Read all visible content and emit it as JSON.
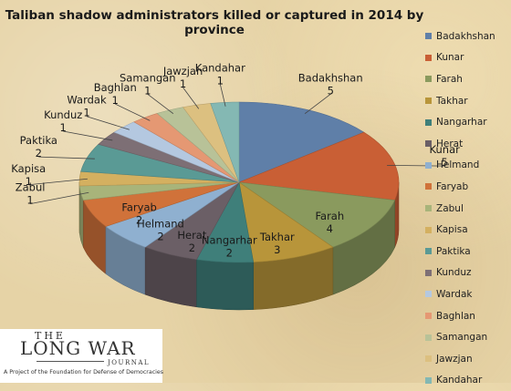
{
  "chart_data": {
    "type": "pie",
    "title": "Taliban shadow administrators killed or captured in 2014 by province",
    "categories": [
      "Badakhshan",
      "Kunar",
      "Farah",
      "Takhar",
      "Nangarhar",
      "Herat",
      "Helmand",
      "Faryab",
      "Zabul",
      "Kapisa",
      "Paktika",
      "Kunduz",
      "Wardak",
      "Baghlan",
      "Samangan",
      "Jawzjan",
      "Kandahar"
    ],
    "values": [
      5,
      5,
      4,
      3,
      2,
      2,
      2,
      2,
      1,
      1,
      2,
      1,
      1,
      1,
      1,
      1,
      1
    ],
    "colors": [
      "#5f7fa8",
      "#c95f35",
      "#8a9a5e",
      "#b8953a",
      "#3f7f7a",
      "#6b5f66",
      "#8fb0d0",
      "#d0723a",
      "#a8b47a",
      "#d4b060",
      "#5a9a95",
      "#7d6f75",
      "#b4c8e0",
      "#e59873",
      "#b8c298",
      "#dcc080",
      "#84b8b3"
    ],
    "legend_position": "right",
    "style": "3d"
  },
  "logo": {
    "the": "THE",
    "name": "LONG WAR",
    "journal": "JOURNAL",
    "tagline": "A Project of the Foundation for Defense of Democracies"
  }
}
